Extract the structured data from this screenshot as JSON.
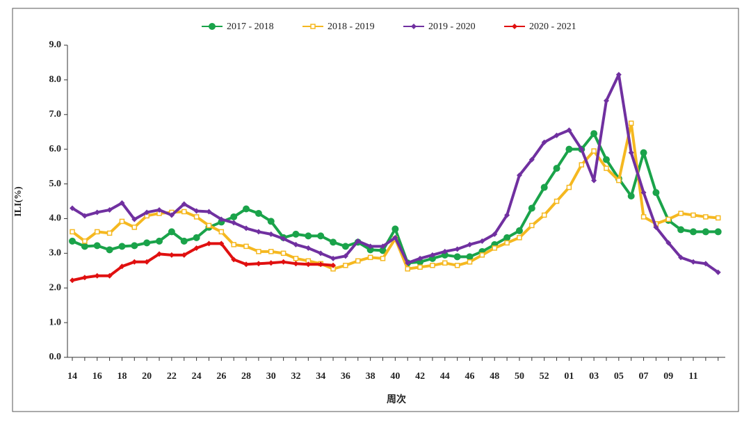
{
  "chart_data": {
    "type": "line",
    "x_label": "周次",
    "y_label": "ILI(%)",
    "categories": [
      "14",
      null,
      "16",
      null,
      "18",
      null,
      "20",
      null,
      "22",
      null,
      "24",
      null,
      "26",
      null,
      "28",
      null,
      "30",
      null,
      "32",
      null,
      "34",
      null,
      "36",
      null,
      "38",
      null,
      "40",
      null,
      "42",
      null,
      "44",
      null,
      "46",
      null,
      "48",
      null,
      "50",
      null,
      "52",
      null,
      "01",
      null,
      "03",
      null,
      "05",
      null,
      "07",
      null,
      "09",
      null,
      "11",
      null,
      null
    ],
    "series": [
      {
        "name": "2017 - 2018",
        "color": "#1aa34a",
        "marker": "circle",
        "values": [
          3.35,
          3.2,
          3.22,
          3.1,
          3.2,
          3.22,
          3.3,
          3.35,
          3.62,
          3.35,
          3.45,
          3.75,
          3.9,
          4.05,
          4.28,
          4.15,
          3.92,
          3.45,
          3.55,
          3.5,
          3.5,
          3.32,
          3.2,
          3.32,
          3.1,
          3.08,
          3.7,
          2.72,
          2.75,
          2.85,
          2.95,
          2.9,
          2.9,
          3.05,
          3.25,
          3.45,
          3.65,
          4.3,
          4.9,
          5.45,
          6.0,
          6.0,
          6.45,
          5.7,
          5.15,
          4.65,
          5.9,
          4.75,
          3.95,
          3.68,
          3.62,
          3.62,
          3.62
        ]
      },
      {
        "name": "2018 - 2019",
        "color": "#f5b820",
        "marker": "square",
        "values": [
          3.62,
          3.35,
          3.62,
          3.58,
          3.92,
          3.75,
          4.08,
          4.15,
          4.18,
          4.2,
          4.05,
          3.8,
          3.62,
          3.25,
          3.2,
          3.05,
          3.05,
          3.0,
          2.85,
          2.78,
          2.7,
          2.55,
          2.65,
          2.78,
          2.88,
          2.85,
          3.42,
          2.55,
          2.6,
          2.65,
          2.72,
          2.65,
          2.75,
          2.95,
          3.15,
          3.3,
          3.45,
          3.8,
          4.1,
          4.5,
          4.9,
          5.55,
          5.95,
          5.45,
          5.1,
          6.75,
          4.05,
          3.85,
          3.98,
          4.15,
          4.1,
          4.05,
          4.02
        ]
      },
      {
        "name": "2019 - 2020",
        "color": "#7030a0",
        "marker": "diamond",
        "values": [
          4.3,
          4.08,
          4.18,
          4.25,
          4.45,
          3.98,
          4.18,
          4.25,
          4.1,
          4.42,
          4.22,
          4.2,
          3.98,
          3.88,
          3.72,
          3.62,
          3.55,
          3.42,
          3.25,
          3.15,
          3.0,
          2.85,
          2.92,
          3.35,
          3.2,
          3.2,
          3.45,
          2.72,
          2.85,
          2.95,
          3.05,
          3.12,
          3.25,
          3.35,
          3.55,
          4.1,
          5.25,
          5.7,
          6.2,
          6.4,
          6.55,
          6.0,
          5.1,
          7.4,
          8.15,
          5.9,
          4.75,
          3.75,
          3.3,
          2.88,
          2.75,
          2.7,
          2.45
        ]
      },
      {
        "name": "2020 - 2021",
        "color": "#e01010",
        "marker": "diamond",
        "values": [
          2.22,
          2.3,
          2.35,
          2.35,
          2.62,
          2.75,
          2.75,
          2.98,
          2.95,
          2.95,
          3.15,
          3.28,
          3.28,
          2.82,
          2.68,
          2.7,
          2.72,
          2.75,
          2.7,
          2.68,
          2.68,
          2.65,
          null,
          null,
          null,
          null,
          null,
          null,
          null,
          null,
          null,
          null,
          null,
          null,
          null,
          null,
          null,
          null,
          null,
          null,
          null,
          null,
          null,
          null,
          null,
          null,
          null,
          null,
          null,
          null,
          null,
          null,
          null
        ]
      }
    ],
    "ylim": [
      0,
      9
    ],
    "yticks": [
      {
        "value": 0,
        "label": "0.0"
      },
      {
        "value": 1,
        "label": "1.0"
      },
      {
        "value": 2,
        "label": "2.0"
      },
      {
        "value": 3,
        "label": "3.0"
      },
      {
        "value": 4,
        "label": "4.0"
      },
      {
        "value": 5,
        "label": "5.0"
      },
      {
        "value": 6,
        "label": "6.0"
      },
      {
        "value": 7,
        "label": "7.0"
      },
      {
        "value": 8,
        "label": "8.0"
      },
      {
        "value": 9,
        "label": "9.0"
      }
    ],
    "legend": "top"
  }
}
